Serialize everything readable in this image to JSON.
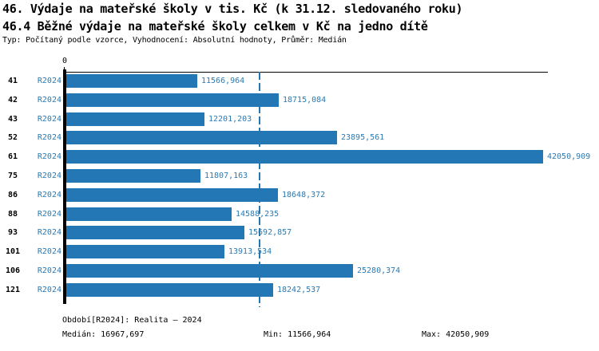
{
  "header": {
    "title1": "46. Výdaje na mateřské školy v tis. Kč (k 31.12. sledovaného roku)",
    "title2": "46.4 Běžné výdaje na mateřské školy celkem v Kč na jedno dítě",
    "meta": "Typ: Počítaný podle vzorce, Vyhodnocení: Absolutní hodnoty, Průměr: Medián"
  },
  "chart_data": {
    "type": "bar",
    "orientation": "horizontal",
    "title": "46.4 Běžné výdaje na mateřské školy celkem v Kč na jedno dítě",
    "categories": [
      "41",
      "42",
      "43",
      "52",
      "61",
      "75",
      "86",
      "88",
      "93",
      "101",
      "106",
      "121"
    ],
    "series": [
      {
        "name": "R2024",
        "values": [
          11566.964,
          18715.084,
          12201.203,
          23895.561,
          42050.909,
          11807.163,
          18648.372,
          14588.235,
          15692.857,
          13913.534,
          25280.374,
          18242.537
        ]
      }
    ],
    "value_labels": [
      "11566,964",
      "18715,084",
      "12201,203",
      "23895,561",
      "42050,909",
      "11807,163",
      "18648,372",
      "14588,235",
      "15692,857",
      "13913,534",
      "25280,374",
      "18242,537"
    ],
    "x_axis": {
      "zero_label": "0",
      "min": 0,
      "max": 42050.909
    },
    "median": 16967.697,
    "grid": false,
    "legend_position": "none",
    "colors": {
      "bar": "#2377b5",
      "median_line": "#2377b5",
      "blue_text": "#2a7ab3"
    }
  },
  "footer": {
    "period": "Období[R2024]: Realita – 2024",
    "median": "Medián: 16967,697",
    "min": "Min: 11566,964",
    "max": "Max: 42050,909"
  }
}
